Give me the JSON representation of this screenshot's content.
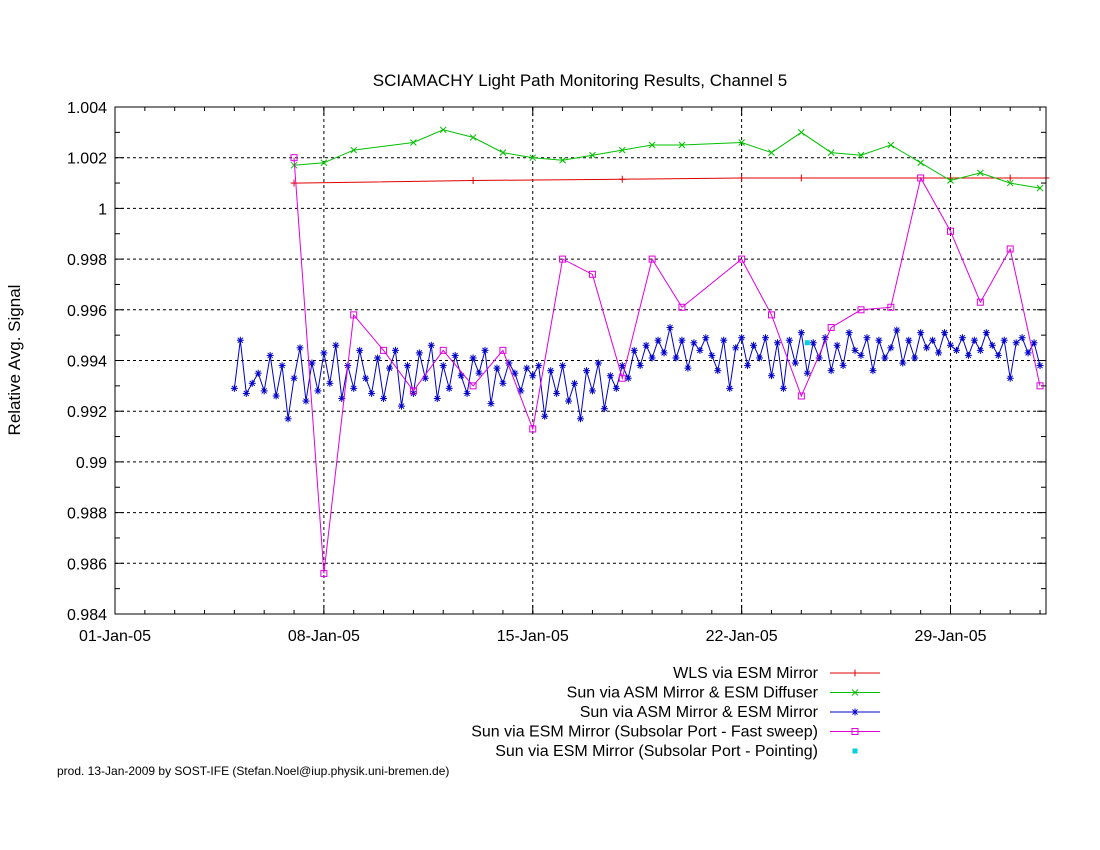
{
  "chart_data": {
    "type": "line",
    "title": "SCIAMACHY Light Path Monitoring Results, Channel 5",
    "ylabel": "Relative Avg. Signal",
    "xlabel": "",
    "x_axis": "date (day of January 2005)",
    "xlim": [
      1,
      32.2
    ],
    "ylim": [
      0.984,
      1.004
    ],
    "yticks": [
      "0.984",
      "0.986",
      "0.988",
      "0.99",
      "0.992",
      "0.994",
      "0.996",
      "0.998",
      "1",
      "1.002",
      "1.004"
    ],
    "xticks": [
      {
        "label": "01-Jan-05",
        "x": 1
      },
      {
        "label": "08-Jan-05",
        "x": 8
      },
      {
        "label": "15-Jan-05",
        "x": 15
      },
      {
        "label": "22-Jan-05",
        "x": 22
      },
      {
        "label": "29-Jan-05",
        "x": 29
      }
    ],
    "grid": true,
    "legend_position": "bottom-right",
    "series": [
      {
        "name": "WLS via ESM Mirror",
        "color": "#e00000",
        "marker": "plus",
        "x": [
          7.0,
          13.0,
          18.0,
          22.0,
          24.0,
          29.0,
          31.0,
          32.2
        ],
        "y": [
          1.001,
          1.0011,
          1.00115,
          1.0012,
          1.0012,
          1.0012,
          1.0012,
          1.0012
        ]
      },
      {
        "name": "Sun via ASM Mirror & ESM Diffuser",
        "color": "#00c000",
        "marker": "cross",
        "x": [
          7.0,
          8.0,
          9.0,
          11.0,
          12.0,
          13.0,
          14.0,
          15.0,
          16.0,
          17.0,
          18.0,
          19.0,
          20.0,
          22.0,
          23.0,
          24.0,
          25.0,
          26.0,
          27.0,
          28.0,
          29.0,
          30.0,
          31.0,
          32.0
        ],
        "y": [
          1.0017,
          1.0018,
          1.0023,
          1.0026,
          1.0031,
          1.0028,
          1.0022,
          1.002,
          1.0019,
          1.0021,
          1.0023,
          1.0025,
          1.0025,
          1.0026,
          1.0022,
          1.003,
          1.0022,
          1.0021,
          1.0025,
          1.0018,
          1.0011,
          1.0014,
          1.001,
          1.0008
        ]
      },
      {
        "name": "Sun via ASM Mirror & ESM Mirror",
        "color": "#0000c8",
        "marker": "star",
        "x": [
          5.0,
          5.2,
          5.4,
          5.6,
          5.8,
          6.0,
          6.2,
          6.4,
          6.6,
          6.8,
          7.0,
          7.2,
          7.4,
          7.6,
          7.8,
          8.0,
          8.2,
          8.4,
          8.6,
          8.8,
          9.0,
          9.2,
          9.4,
          9.6,
          9.8,
          10.0,
          10.2,
          10.4,
          10.6,
          10.8,
          11.0,
          11.2,
          11.4,
          11.6,
          11.8,
          12.0,
          12.2,
          12.4,
          12.6,
          12.8,
          13.0,
          13.2,
          13.4,
          13.6,
          13.8,
          14.0,
          14.2,
          14.4,
          14.6,
          14.8,
          15.0,
          15.2,
          15.4,
          15.6,
          15.8,
          16.0,
          16.2,
          16.4,
          16.6,
          16.8,
          17.0,
          17.2,
          17.4,
          17.6,
          17.8,
          18.0,
          18.2,
          18.4,
          18.6,
          18.8,
          19.0,
          19.2,
          19.4,
          19.6,
          19.8,
          20.0,
          20.2,
          20.4,
          20.6,
          20.8,
          21.0,
          21.2,
          21.4,
          21.6,
          21.8,
          22.0,
          22.2,
          22.4,
          22.6,
          22.8,
          23.0,
          23.2,
          23.4,
          23.6,
          23.8,
          24.0,
          24.2,
          24.4,
          24.6,
          24.8,
          25.0,
          25.2,
          25.4,
          25.6,
          25.8,
          26.0,
          26.2,
          26.4,
          26.6,
          26.8,
          27.0,
          27.2,
          27.4,
          27.6,
          27.8,
          28.0,
          28.2,
          28.4,
          28.6,
          28.8,
          29.0,
          29.2,
          29.4,
          29.6,
          29.8,
          30.0,
          30.2,
          30.4,
          30.6,
          30.8,
          31.0,
          31.2,
          31.4,
          31.6,
          31.8,
          32.0
        ],
        "y": [
          0.9929,
          0.9948,
          0.9927,
          0.9931,
          0.9935,
          0.9928,
          0.9942,
          0.9926,
          0.9938,
          0.9917,
          0.9933,
          0.9945,
          0.9924,
          0.9939,
          0.9928,
          0.9943,
          0.9931,
          0.9946,
          0.9925,
          0.9938,
          0.9929,
          0.9944,
          0.9933,
          0.9927,
          0.9941,
          0.9925,
          0.9937,
          0.9944,
          0.9922,
          0.9938,
          0.9927,
          0.9943,
          0.9933,
          0.9946,
          0.9925,
          0.9938,
          0.9929,
          0.9942,
          0.9934,
          0.9927,
          0.9941,
          0.9935,
          0.9944,
          0.9923,
          0.9937,
          0.9931,
          0.9939,
          0.9935,
          0.9928,
          0.9937,
          0.9934,
          0.9938,
          0.9918,
          0.9936,
          0.9927,
          0.9938,
          0.9924,
          0.9931,
          0.9917,
          0.9936,
          0.9928,
          0.9939,
          0.9921,
          0.9934,
          0.9929,
          0.9938,
          0.9933,
          0.9944,
          0.9938,
          0.9946,
          0.9941,
          0.9948,
          0.9943,
          0.9953,
          0.9941,
          0.9948,
          0.9937,
          0.9947,
          0.9944,
          0.9949,
          0.9942,
          0.9936,
          0.9948,
          0.9929,
          0.9945,
          0.9949,
          0.9938,
          0.9946,
          0.9941,
          0.9949,
          0.9934,
          0.9947,
          0.9929,
          0.9948,
          0.9939,
          0.9951,
          0.9935,
          0.9947,
          0.9941,
          0.9949,
          0.9936,
          0.9946,
          0.9938,
          0.9951,
          0.9944,
          0.9942,
          0.9949,
          0.9936,
          0.9948,
          0.9941,
          0.9945,
          0.9952,
          0.9939,
          0.9948,
          0.9941,
          0.9951,
          0.9945,
          0.9948,
          0.9943,
          0.9951,
          0.9946,
          0.9944,
          0.9949,
          0.9942,
          0.9948,
          0.9944,
          0.9951,
          0.9946,
          0.9942,
          0.9948,
          0.9933,
          0.9947,
          0.9949,
          0.9943,
          0.9947,
          0.9938
        ]
      },
      {
        "name": "Sun via ESM Mirror (Subsolar Port - Fast sweep)",
        "color": "#e000e0",
        "marker": "square",
        "x": [
          7.0,
          8.0,
          9.0,
          10.0,
          11.0,
          12.0,
          13.0,
          14.0,
          15.0,
          16.0,
          17.0,
          18.0,
          19.0,
          20.0,
          22.0,
          23.0,
          24.0,
          25.0,
          26.0,
          27.0,
          28.0,
          29.0,
          30.0,
          31.0,
          32.0
        ],
        "y": [
          1.002,
          0.9856,
          0.9958,
          0.9944,
          0.9928,
          0.9944,
          0.993,
          0.9944,
          0.9913,
          0.998,
          0.9974,
          0.9933,
          0.998,
          0.9961,
          0.998,
          0.9958,
          0.9926,
          0.9953,
          0.996,
          0.9961,
          1.0012,
          0.9991,
          0.9963,
          0.9984,
          0.993
        ]
      },
      {
        "name": "Sun via ESM Mirror (Subsolar Port - Pointing)",
        "color": "#00d0e0",
        "marker": "dot",
        "x": [
          24.2
        ],
        "y": [
          0.9947
        ]
      }
    ]
  },
  "footer_text": "prod. 13-Jan-2009 by SOST-IFE (Stefan.Noel@iup.physik.uni-bremen.de)"
}
